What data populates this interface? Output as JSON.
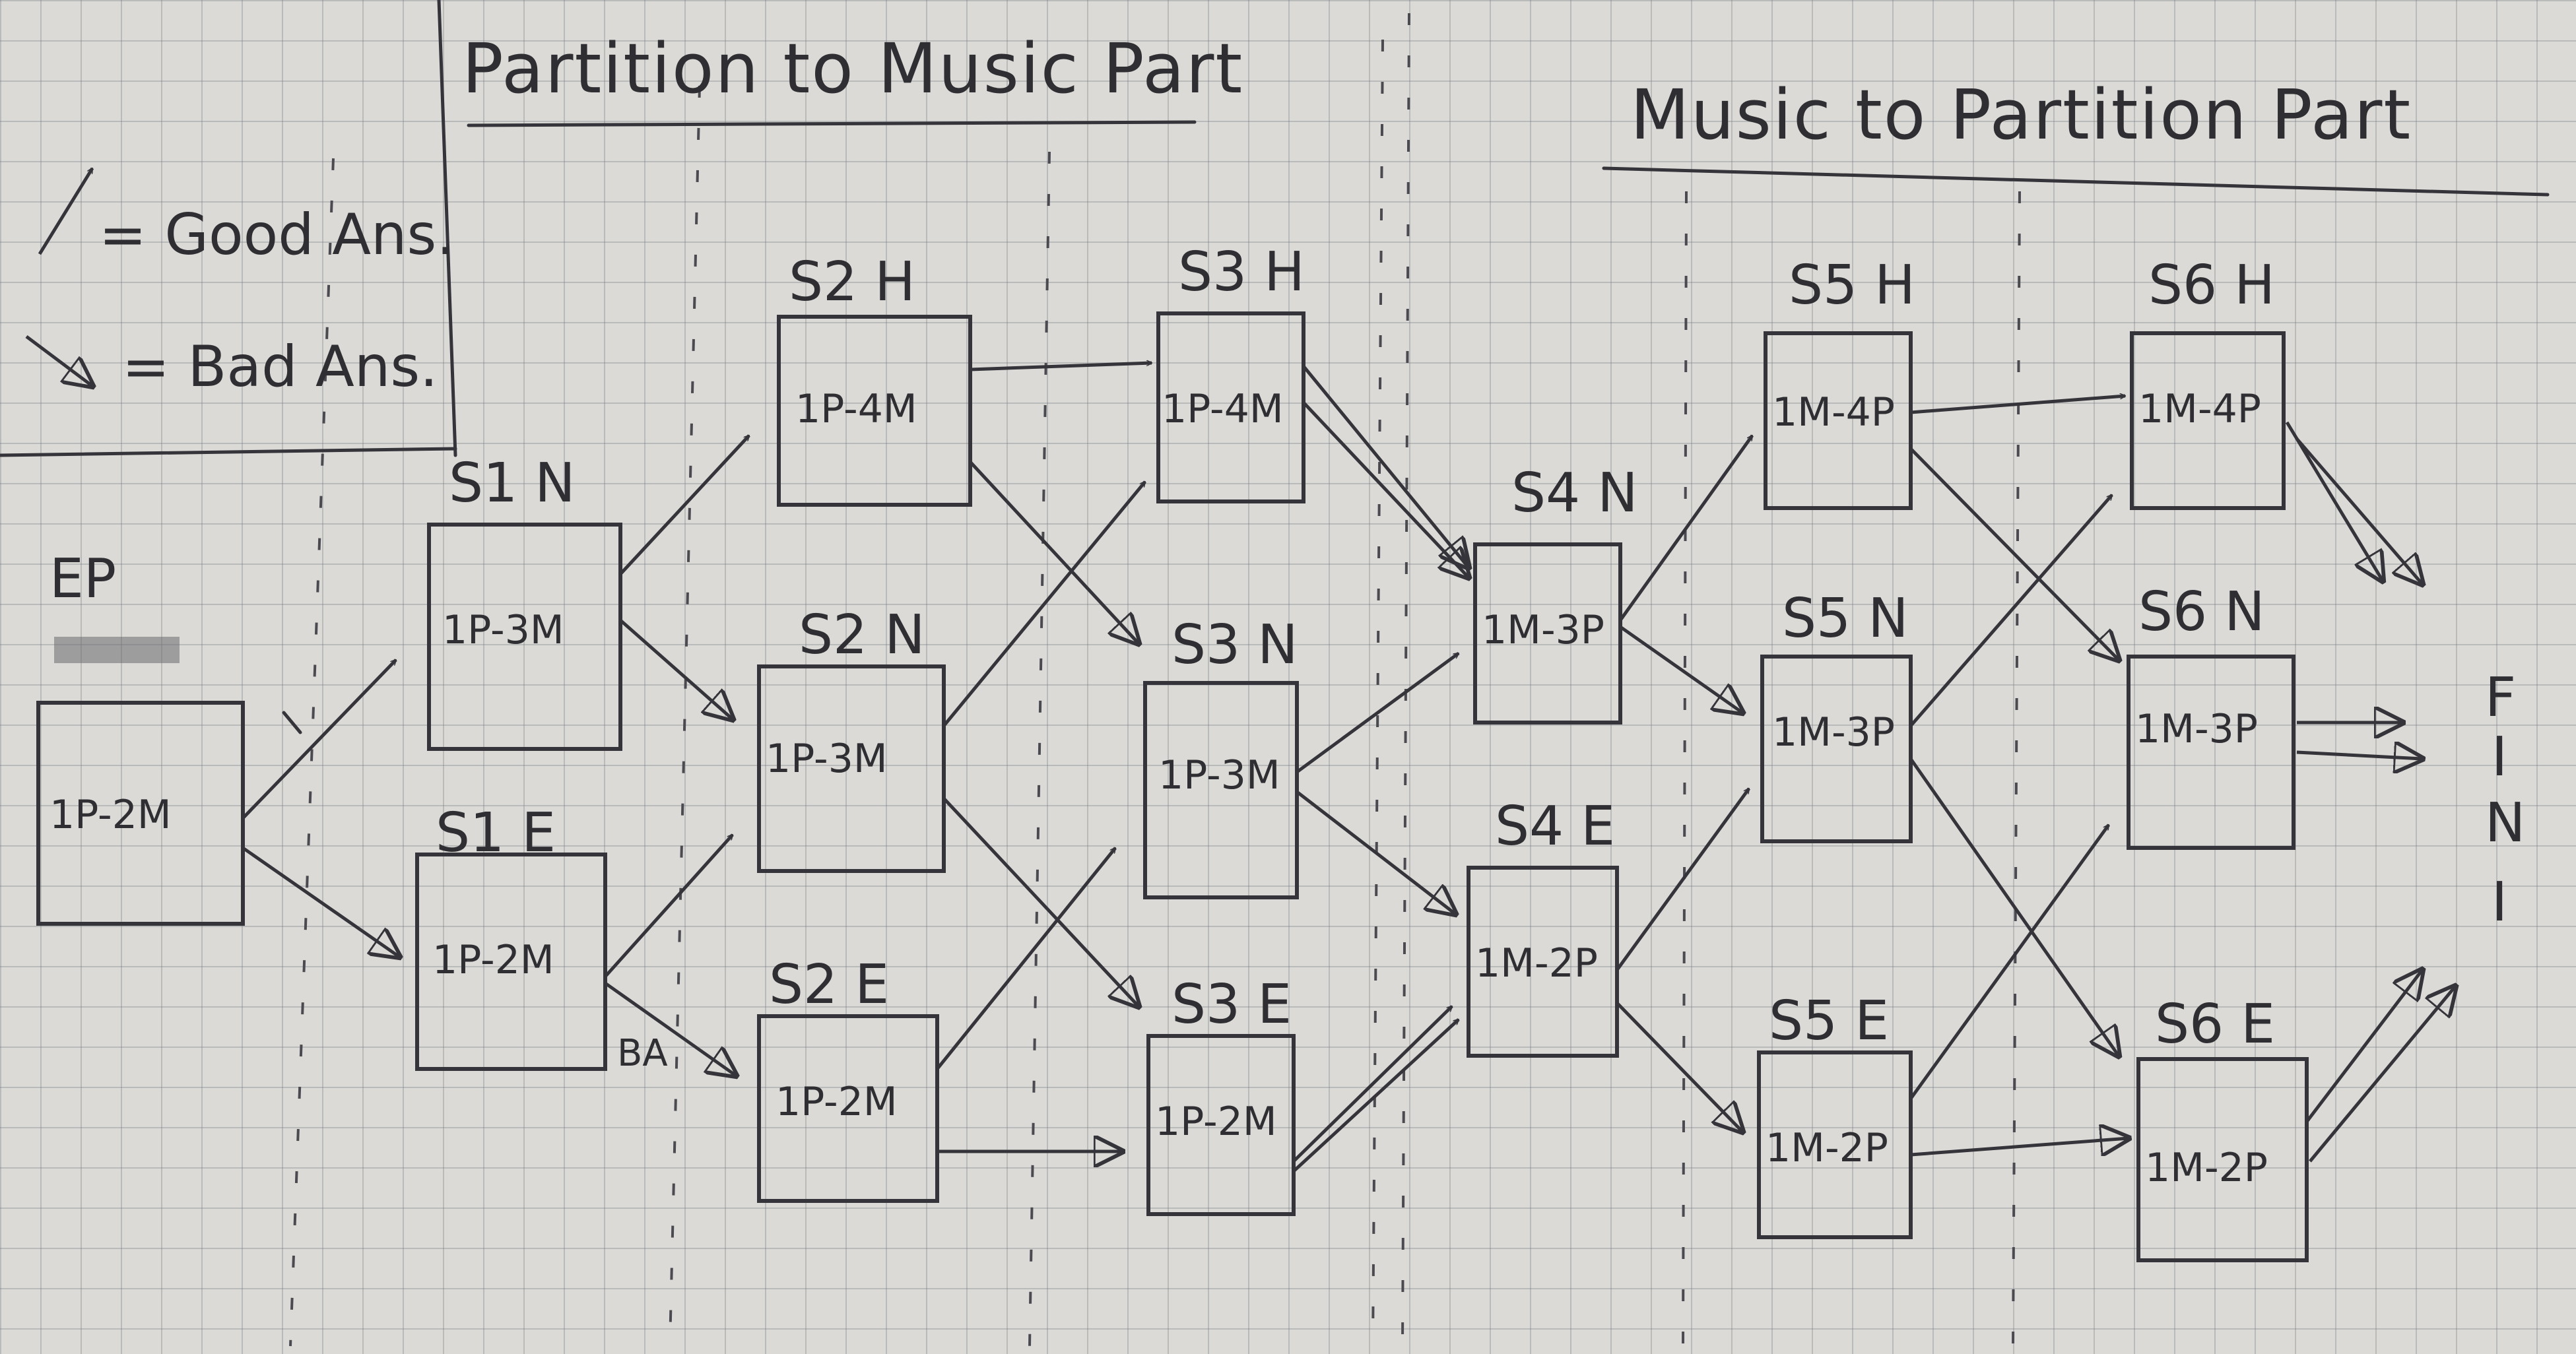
{
  "titles": {
    "left": "Partition to Music Part",
    "right": "Music to Partition Part"
  },
  "legend": {
    "good": "= Good Ans.",
    "bad": "= Bad Ans."
  },
  "nodes": {
    "ep": {
      "name": "EP",
      "content": "1P-2M"
    },
    "s1n": {
      "name": "S1 N",
      "content": "1P-3M"
    },
    "s1e": {
      "name": "S1 E",
      "content": "1P-2M"
    },
    "s2h": {
      "name": "S2 H",
      "content": "1P-4M"
    },
    "s2n": {
      "name": "S2 N",
      "content": "1P-3M"
    },
    "s2e": {
      "name": "S2 E",
      "content": "1P-2M"
    },
    "s3h": {
      "name": "S3 H",
      "content": "1P-4M"
    },
    "s3n": {
      "name": "S3 N",
      "content": "1P-3M"
    },
    "s3e": {
      "name": "S3 E",
      "content": "1P-2M"
    },
    "s4n": {
      "name": "S4 N",
      "content": "1M-3P"
    },
    "s4e": {
      "name": "S4 E",
      "content": "1M-2P"
    },
    "s5h": {
      "name": "S5 H",
      "content": "1M-4P"
    },
    "s5n": {
      "name": "S5 N",
      "content": "1M-3P"
    },
    "s5e": {
      "name": "S5 E",
      "content": "1M-2P"
    },
    "s6h": {
      "name": "S6 H",
      "content": "1M-4P"
    },
    "s6n": {
      "name": "S6 N",
      "content": "1M-3P"
    },
    "s6e": {
      "name": "S6 E",
      "content": "1M-2P"
    }
  },
  "annotations": {
    "ba": "BA",
    "end_letters": [
      "F",
      "I",
      "N",
      "I"
    ]
  }
}
